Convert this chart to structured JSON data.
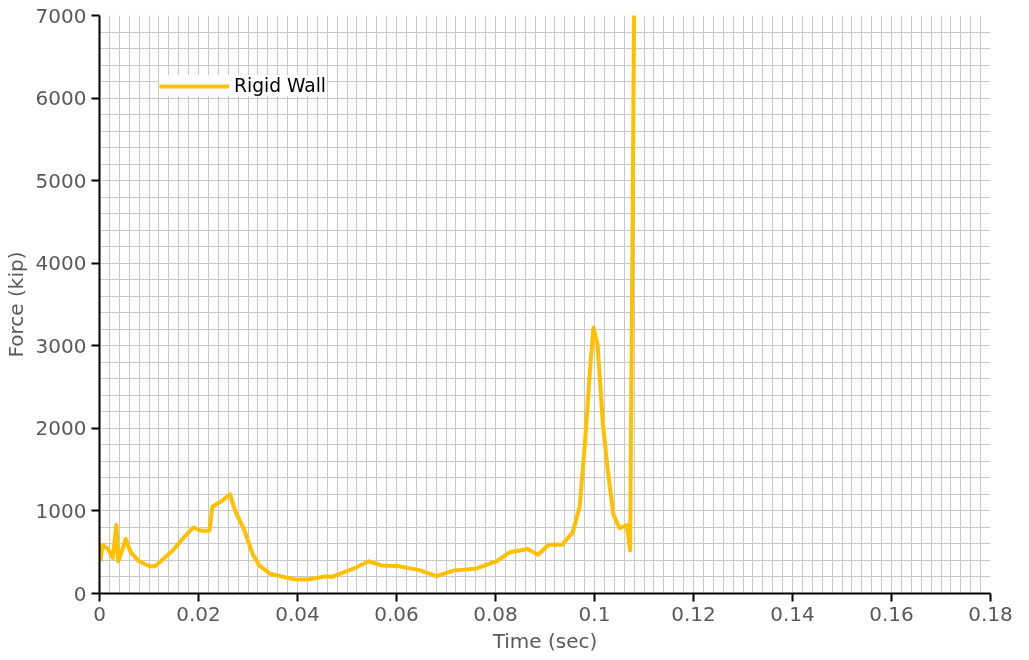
{
  "chart_data": {
    "type": "line",
    "xlabel": "Time (sec)",
    "ylabel": "Force (kip)",
    "xlim": [
      0,
      0.18
    ],
    "ylim": [
      0,
      7000
    ],
    "xticks": [
      0,
      0.02,
      0.04,
      0.06,
      0.08,
      0.1,
      0.12,
      0.14,
      0.16,
      0.18
    ],
    "yticks": [
      0,
      1000,
      2000,
      3000,
      4000,
      5000,
      6000,
      7000
    ],
    "grid": true,
    "legend": "top left",
    "marker": "none",
    "line_style": "solid",
    "series": [
      {
        "name": "Rigid Wall",
        "color": "#ffc000",
        "x": [
          0.0002,
          0.0006,
          0.0017,
          0.0027,
          0.0034,
          0.0038,
          0.0053,
          0.0063,
          0.008,
          0.0101,
          0.0112,
          0.0131,
          0.0148,
          0.0169,
          0.019,
          0.0205,
          0.0222,
          0.0228,
          0.0247,
          0.0264,
          0.0274,
          0.0291,
          0.031,
          0.0323,
          0.0344,
          0.0365,
          0.0395,
          0.0422,
          0.0458,
          0.047,
          0.0513,
          0.0544,
          0.057,
          0.0605,
          0.0648,
          0.0681,
          0.0717,
          0.076,
          0.0802,
          0.0829,
          0.0865,
          0.0886,
          0.0907,
          0.0935,
          0.0956,
          0.097,
          0.0981,
          0.0992,
          0.0998,
          0.1006,
          0.1017,
          0.1027,
          0.1038,
          0.1051,
          0.1065,
          0.1072,
          0.108,
          0.1082
        ],
        "values": [
          390,
          590,
          540,
          430,
          830,
          390,
          660,
          500,
          390,
          330,
          330,
          430,
          520,
          670,
          800,
          760,
          760,
          1050,
          1120,
          1200,
          1000,
          790,
          470,
          340,
          240,
          210,
          170,
          170,
          210,
          200,
          300,
          390,
          340,
          330,
          280,
          210,
          280,
          300,
          390,
          500,
          540,
          470,
          590,
          590,
          740,
          1050,
          1840,
          2800,
          3220,
          3020,
          2050,
          1480,
          960,
          790,
          830,
          520,
          7000,
          7000
        ]
      }
    ]
  }
}
